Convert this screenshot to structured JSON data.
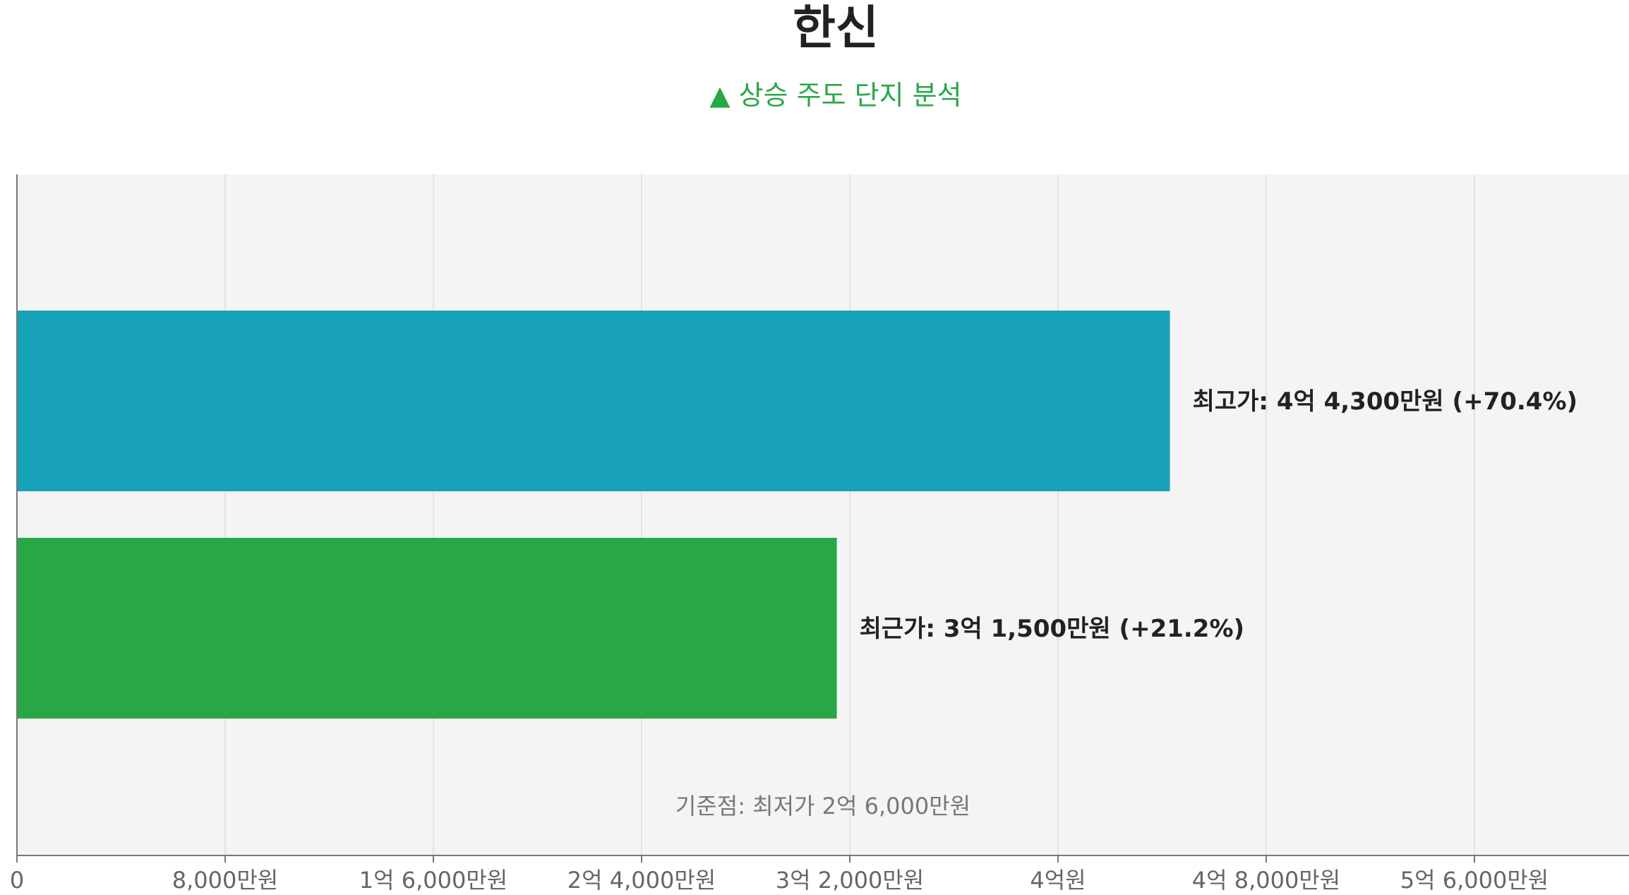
{
  "chart_data": {
    "type": "bar",
    "orientation": "horizontal",
    "title": "한신",
    "subtitle": "▲ 상승 주도 단지 분석",
    "categories": [
      "최고가",
      "최근가"
    ],
    "values": [
      44300,
      31500
    ],
    "unit": "만원",
    "bar_labels": [
      "최고가: 4억 4,300만원 (+70.4%)",
      "최근가: 3억 1,500만원 (+21.2%)"
    ],
    "colors": [
      "#17a2b8",
      "#28a745"
    ],
    "xlim": [
      0,
      62000
    ],
    "xticks": [
      0,
      8000,
      16000,
      24000,
      32000,
      40000,
      48000,
      56000
    ],
    "xtick_labels": [
      "0",
      "8,000만원",
      "1억 6,000만원",
      "2억 4,000만원",
      "3억 2,000만원",
      "4억원",
      "4억 8,000만원",
      "5억 6,000만원"
    ],
    "annotation": "기준점: 최저가 2억 6,000만원",
    "grid": true,
    "xlabel": "",
    "ylabel": ""
  }
}
